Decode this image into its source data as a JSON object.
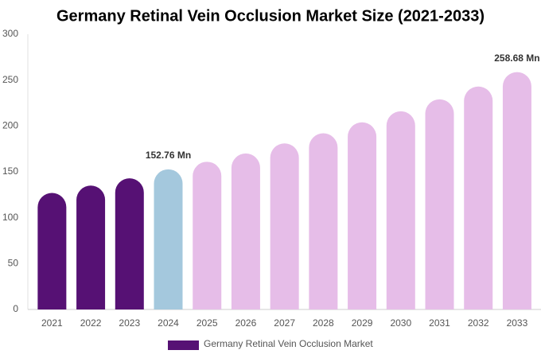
{
  "chart_data": {
    "type": "bar",
    "title": "Germany Retinal Vein Occlusion Market Size (2021-2033)",
    "categories": [
      "2021",
      "2022",
      "2023",
      "2024",
      "2025",
      "2026",
      "2027",
      "2028",
      "2029",
      "2030",
      "2031",
      "2032",
      "2033"
    ],
    "series": [
      {
        "name": "Germany Retinal Vein Occlusion Market",
        "color": "#561174",
        "values": [
          127,
          135,
          143,
          152.76,
          161,
          170,
          181,
          192,
          204,
          216,
          229,
          243,
          258.68
        ],
        "colors": [
          "#561174",
          "#561174",
          "#561174",
          "#a4c8dd",
          "#e6bde8",
          "#e6bde8",
          "#e6bde8",
          "#e6bde8",
          "#e6bde8",
          "#e6bde8",
          "#e6bde8",
          "#e6bde8",
          "#e6bde8"
        ],
        "value_labels": [
          null,
          null,
          null,
          "152.76 Mn",
          null,
          null,
          null,
          null,
          null,
          null,
          null,
          null,
          "258.68 Mn"
        ]
      }
    ],
    "ylim": [
      0,
      300
    ],
    "yticks": [
      0,
      50,
      100,
      150,
      200,
      250,
      300
    ]
  }
}
